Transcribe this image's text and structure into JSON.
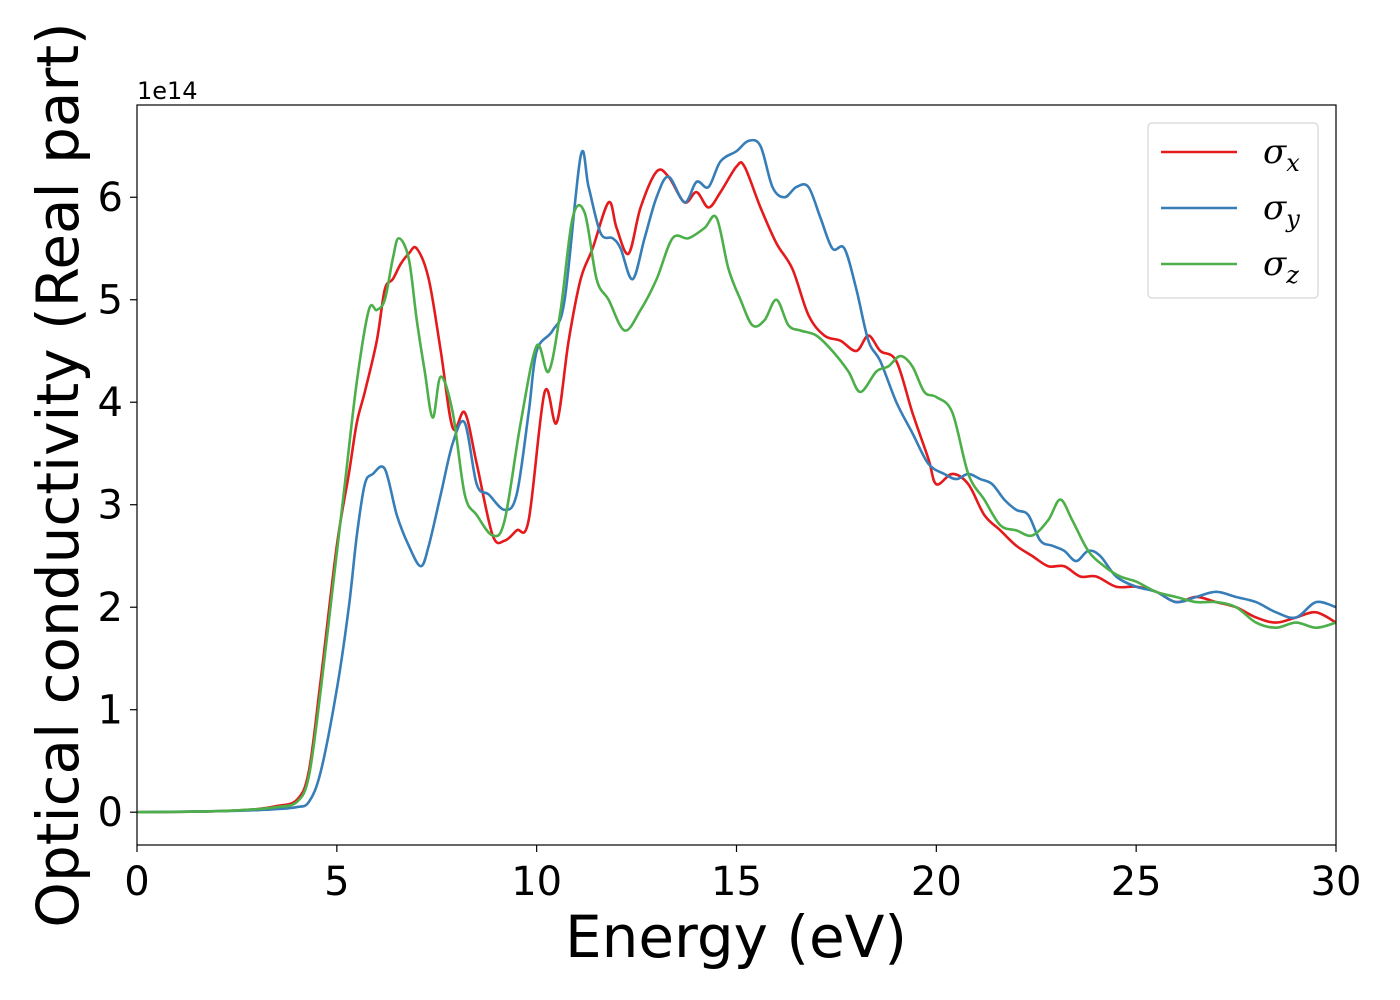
{
  "chart_data": {
    "type": "line",
    "title": "",
    "xlabel": "Energy (eV)",
    "ylabel": "Optical conductivity (Real part)",
    "y_offset_label": "1e14",
    "xlim": [
      0,
      30
    ],
    "ylim": [
      -0.32,
      6.9
    ],
    "xticks": [
      0,
      5,
      10,
      15,
      20,
      25,
      30
    ],
    "yticks": [
      0,
      1,
      2,
      3,
      4,
      5,
      6
    ],
    "grid": false,
    "legend_position": "top-right",
    "series": [
      {
        "name": "σ",
        "subscript": "x",
        "color": "#e41a1c",
        "x": [
          0,
          2,
          3,
          3.5,
          4,
          4.3,
          4.6,
          5.0,
          5.3,
          5.5,
          5.7,
          6.0,
          6.2,
          6.4,
          6.6,
          6.8,
          7.0,
          7.3,
          7.6,
          7.9,
          8.2,
          8.5,
          8.9,
          9.2,
          9.5,
          9.8,
          10.2,
          10.5,
          10.8,
          11.1,
          11.4,
          11.8,
          12.0,
          12.3,
          12.6,
          13.0,
          13.3,
          13.7,
          14.0,
          14.3,
          14.6,
          15.0,
          15.2,
          15.6,
          16.0,
          16.4,
          16.8,
          17.2,
          17.6,
          18.0,
          18.3,
          18.6,
          19.0,
          19.4,
          19.8,
          20.0,
          20.4,
          20.8,
          21.2,
          21.6,
          22.0,
          22.4,
          22.8,
          23.2,
          23.6,
          24.0,
          24.5,
          25.0,
          25.5,
          26.0,
          26.5,
          27.0,
          27.5,
          28.0,
          28.5,
          29.0,
          29.5,
          30.0
        ],
        "y": [
          0,
          0.01,
          0.03,
          0.06,
          0.12,
          0.4,
          1.3,
          2.6,
          3.3,
          3.8,
          4.1,
          4.6,
          5.1,
          5.2,
          5.35,
          5.45,
          5.5,
          5.2,
          4.5,
          3.75,
          3.9,
          3.4,
          2.7,
          2.65,
          2.75,
          2.85,
          4.1,
          3.8,
          4.6,
          5.2,
          5.5,
          5.95,
          5.7,
          5.45,
          5.9,
          6.25,
          6.2,
          5.95,
          6.05,
          5.9,
          6.05,
          6.3,
          6.3,
          5.9,
          5.55,
          5.3,
          4.85,
          4.65,
          4.6,
          4.5,
          4.65,
          4.5,
          4.4,
          3.9,
          3.45,
          3.2,
          3.3,
          3.2,
          2.9,
          2.75,
          2.6,
          2.5,
          2.4,
          2.4,
          2.3,
          2.3,
          2.2,
          2.2,
          2.15,
          2.05,
          2.1,
          2.05,
          2.0,
          1.9,
          1.85,
          1.9,
          1.95,
          1.85
        ]
      },
      {
        "name": "σ",
        "subscript": "y",
        "color": "#377eb8",
        "x": [
          0,
          2,
          3,
          3.5,
          4,
          4.3,
          4.6,
          5.0,
          5.3,
          5.5,
          5.7,
          5.9,
          6.2,
          6.5,
          6.8,
          7.1,
          7.3,
          7.6,
          7.9,
          8.2,
          8.5,
          8.8,
          9.2,
          9.5,
          9.8,
          10.0,
          10.4,
          10.7,
          11.1,
          11.3,
          11.6,
          11.9,
          12.1,
          12.4,
          12.7,
          13.0,
          13.3,
          13.7,
          14.0,
          14.3,
          14.6,
          15.0,
          15.3,
          15.6,
          15.9,
          16.2,
          16.5,
          16.8,
          17.1,
          17.4,
          17.7,
          18.0,
          18.3,
          18.6,
          19.0,
          19.4,
          19.8,
          20.2,
          20.5,
          20.8,
          21.1,
          21.4,
          21.7,
          22.0,
          22.3,
          22.6,
          22.9,
          23.2,
          23.5,
          23.8,
          24.1,
          24.5,
          25.0,
          25.5,
          26.0,
          26.5,
          27.0,
          27.5,
          28.0,
          28.5,
          29.0,
          29.5,
          30.0
        ],
        "y": [
          0,
          0.01,
          0.02,
          0.03,
          0.05,
          0.1,
          0.4,
          1.2,
          2.0,
          2.7,
          3.2,
          3.3,
          3.35,
          2.9,
          2.6,
          2.4,
          2.6,
          3.1,
          3.6,
          3.8,
          3.2,
          3.1,
          2.95,
          3.1,
          3.9,
          4.5,
          4.7,
          5.0,
          6.4,
          6.1,
          5.65,
          5.6,
          5.5,
          5.2,
          5.6,
          6.0,
          6.2,
          5.95,
          6.15,
          6.1,
          6.35,
          6.45,
          6.55,
          6.5,
          6.1,
          6.0,
          6.1,
          6.1,
          5.8,
          5.5,
          5.5,
          5.1,
          4.6,
          4.4,
          4.0,
          3.7,
          3.4,
          3.3,
          3.25,
          3.3,
          3.25,
          3.2,
          3.05,
          2.95,
          2.9,
          2.65,
          2.6,
          2.55,
          2.45,
          2.55,
          2.5,
          2.3,
          2.2,
          2.15,
          2.05,
          2.1,
          2.15,
          2.1,
          2.05,
          1.95,
          1.9,
          2.05,
          2.0
        ]
      },
      {
        "name": "σ",
        "subscript": "z",
        "color": "#4daf4a",
        "x": [
          0,
          2,
          3,
          3.5,
          4,
          4.3,
          4.6,
          4.9,
          5.2,
          5.5,
          5.8,
          6.0,
          6.2,
          6.4,
          6.55,
          6.8,
          7.0,
          7.2,
          7.4,
          7.6,
          7.9,
          8.2,
          8.5,
          8.9,
          9.2,
          9.6,
          10.0,
          10.3,
          10.6,
          10.9,
          11.2,
          11.5,
          11.8,
          12.2,
          12.6,
          13.0,
          13.4,
          13.8,
          14.2,
          14.5,
          14.8,
          15.1,
          15.4,
          15.7,
          16.0,
          16.3,
          16.6,
          17.0,
          17.4,
          17.8,
          18.1,
          18.5,
          18.8,
          19.1,
          19.4,
          19.7,
          20.0,
          20.4,
          20.8,
          21.2,
          21.6,
          22.0,
          22.4,
          22.8,
          23.1,
          23.4,
          23.8,
          24.2,
          24.6,
          25.0,
          25.5,
          26.0,
          26.5,
          27.0,
          27.5,
          28.0,
          28.5,
          29.0,
          29.5,
          30.0
        ],
        "y": [
          0,
          0.01,
          0.03,
          0.05,
          0.1,
          0.35,
          1.2,
          2.2,
          3.2,
          4.2,
          4.9,
          4.9,
          5.0,
          5.4,
          5.6,
          5.4,
          4.8,
          4.3,
          3.85,
          4.25,
          3.9,
          3.1,
          2.9,
          2.7,
          2.85,
          3.8,
          4.55,
          4.3,
          4.9,
          5.8,
          5.85,
          5.2,
          5.0,
          4.7,
          4.9,
          5.2,
          5.6,
          5.6,
          5.7,
          5.8,
          5.3,
          5.0,
          4.75,
          4.8,
          5.0,
          4.75,
          4.7,
          4.65,
          4.5,
          4.3,
          4.1,
          4.3,
          4.35,
          4.45,
          4.35,
          4.1,
          4.05,
          3.9,
          3.3,
          3.05,
          2.8,
          2.75,
          2.7,
          2.85,
          3.05,
          2.85,
          2.55,
          2.4,
          2.3,
          2.25,
          2.15,
          2.1,
          2.05,
          2.05,
          2.0,
          1.85,
          1.8,
          1.85,
          1.8,
          1.85
        ]
      }
    ]
  }
}
